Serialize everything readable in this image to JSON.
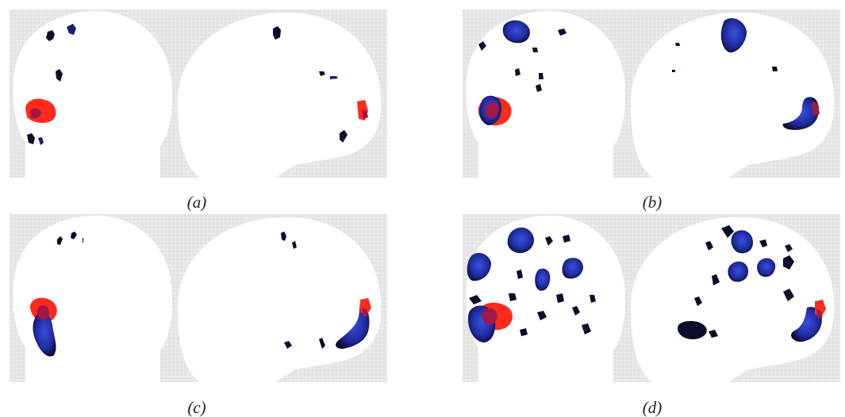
{
  "figure": {
    "colors": {
      "background_grid": "#e3e3e3",
      "grid_line": "#f2f2f2",
      "brain": "#ffffff",
      "blob_dark": "#0b0b2a",
      "blob_blue": "#2433b8",
      "blob_red": "#ff2a1a",
      "blob_overlap": "#a01848"
    },
    "panels": [
      {
        "caption": "(a)"
      },
      {
        "caption": "(b)"
      },
      {
        "caption": "(c)"
      },
      {
        "caption": "(d)"
      }
    ]
  }
}
